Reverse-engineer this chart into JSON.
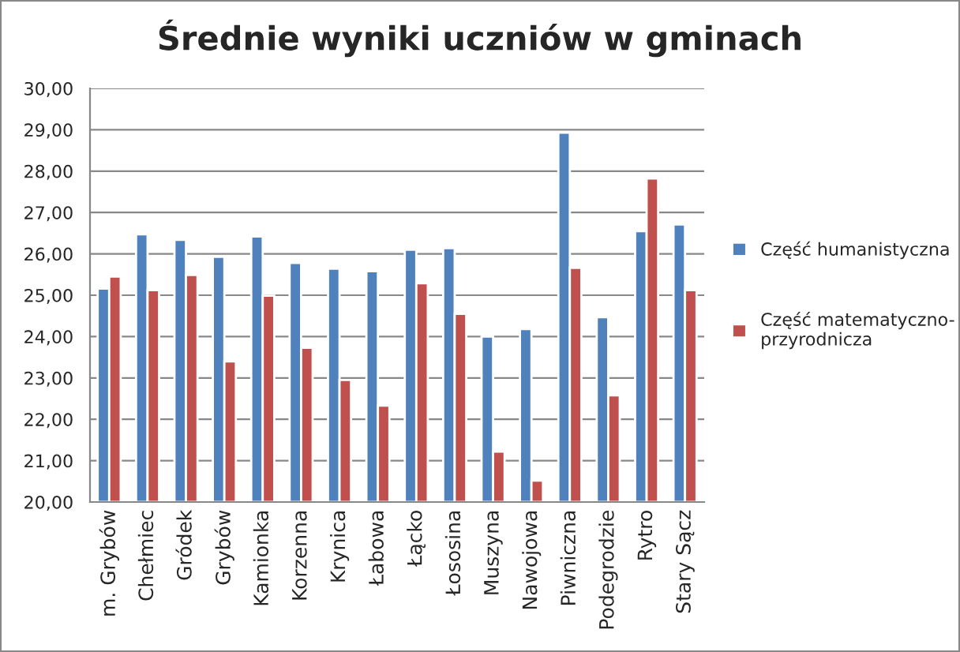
{
  "chart_data": {
    "type": "bar",
    "title": "Średnie wyniki uczniów w gminach",
    "categories": [
      "m. Grybów",
      "Chełmiec",
      "Gródek",
      "Grybów",
      "Kamionka",
      "Korzenna",
      "Krynica",
      "Łabowa",
      "Łącko",
      "Łososina",
      "Muszyna",
      "Nawojowa",
      "Piwniczna",
      "Podegrodzie",
      "Rytro",
      "Stary Sącz"
    ],
    "series": [
      {
        "name": "Część humanistyczna",
        "color": "#4f81bd",
        "values": [
          25.16,
          26.47,
          26.34,
          25.93,
          26.42,
          25.78,
          25.64,
          25.58,
          26.1,
          26.14,
          24.0,
          24.18,
          28.93,
          24.47,
          26.55,
          26.71
        ]
      },
      {
        "name": "Część matematyczno-przyrodnicza",
        "color": "#c0504d",
        "values": [
          25.45,
          25.12,
          25.49,
          23.4,
          24.99,
          23.73,
          22.95,
          22.33,
          25.29,
          24.55,
          21.22,
          20.52,
          25.66,
          22.58,
          27.82,
          25.12
        ]
      }
    ],
    "ylim": [
      20,
      30
    ],
    "yticks": [
      {
        "value": 20,
        "label": "20,00"
      },
      {
        "value": 21,
        "label": "21,00"
      },
      {
        "value": 22,
        "label": "22,00"
      },
      {
        "value": 23,
        "label": "23,00"
      },
      {
        "value": 24,
        "label": "24,00"
      },
      {
        "value": 25,
        "label": "25,00"
      },
      {
        "value": 26,
        "label": "26,00"
      },
      {
        "value": 27,
        "label": "27,00"
      },
      {
        "value": 28,
        "label": "28,00"
      },
      {
        "value": 29,
        "label": "29,00"
      },
      {
        "value": 30,
        "label": "30,00"
      }
    ],
    "grid": "y",
    "legend": "right"
  }
}
